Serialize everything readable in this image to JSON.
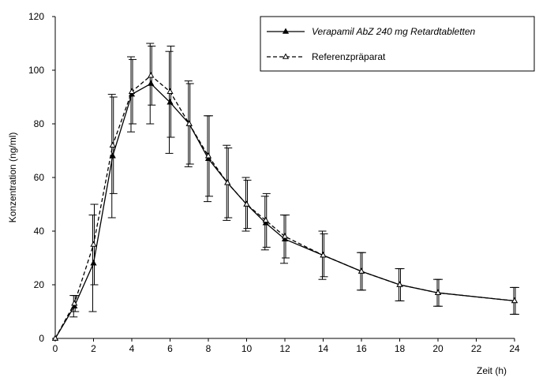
{
  "chart_data": {
    "type": "line",
    "title": "",
    "xlabel": "Zeit (h)",
    "ylabel": "Konzentration (ng/ml)",
    "xlim": [
      0,
      24
    ],
    "ylim": [
      0,
      120
    ],
    "x_ticks": [
      "0",
      "2",
      "4",
      "6",
      "8",
      "10",
      "12",
      "14",
      "16",
      "18",
      "20",
      "22",
      "24"
    ],
    "y_ticks": [
      "0",
      "20",
      "40",
      "60",
      "80",
      "100",
      "120"
    ],
    "grid": false,
    "legend_position": "top-right",
    "series": [
      {
        "name": "Verapamil AbZ 240 mg Retardtabletten",
        "marker": "filled-triangle",
        "line_style": "solid",
        "color": "#000000",
        "x": [
          0,
          1,
          2,
          3,
          4,
          5,
          6,
          7,
          8,
          9,
          10,
          11,
          12,
          14,
          16,
          18,
          20,
          24
        ],
        "y": [
          0,
          12,
          28,
          68,
          91,
          95,
          88,
          80,
          67,
          58,
          50,
          43,
          37,
          31,
          25,
          20,
          17,
          14
        ],
        "error": [
          0,
          4,
          18,
          23,
          14,
          15,
          19,
          16,
          16,
          14,
          10,
          10,
          9,
          9,
          7,
          6,
          5,
          5
        ]
      },
      {
        "name": "Referenzpräparat",
        "marker": "open-triangle",
        "line_style": "dashed",
        "color": "#000000",
        "x": [
          0,
          1,
          2,
          3,
          4,
          5,
          6,
          7,
          8,
          9,
          10,
          11,
          12,
          14,
          16,
          18,
          20,
          24
        ],
        "y": [
          0,
          13,
          35,
          72,
          92,
          98,
          92,
          80,
          68,
          58,
          50,
          44,
          38,
          31,
          25,
          20,
          17,
          14
        ],
        "error": [
          0,
          3,
          15,
          18,
          12,
          11,
          17,
          15,
          15,
          13,
          9,
          10,
          8,
          8,
          7,
          6,
          5,
          5
        ]
      }
    ]
  }
}
